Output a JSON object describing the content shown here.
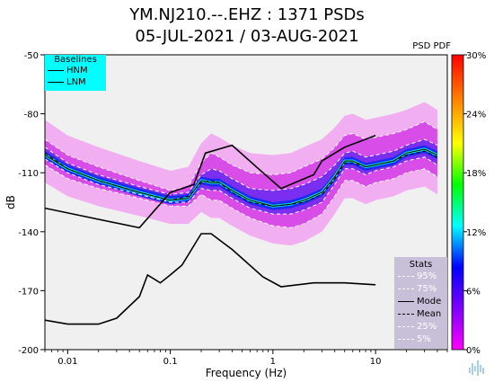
{
  "title_line1": "YM.NJ210.--.EHZ : 1371 PSDs",
  "title_line2": "05-JUL-2021 / 03-AUG-2021",
  "psd_label": "PSD PDF",
  "colors": {
    "plot_bg": "#f0f0f0",
    "baseline_legend_bg": "#00ffff",
    "stats_legend_bg": "#c8c0d8"
  },
  "legend_baselines": {
    "title": "Baselines",
    "items": [
      "HNM",
      "LNM"
    ]
  },
  "legend_stats": {
    "title": "Stats",
    "items": [
      "95%",
      "75%",
      "Mode",
      "Mean",
      "25%",
      "5%"
    ]
  },
  "chart_data": {
    "type": "heatmap",
    "x_scale": "log",
    "xlim": [
      0.006,
      50
    ],
    "ylim": [
      -200,
      -50
    ],
    "xlabel": "Frequency (Hz)",
    "ylabel": "dB",
    "x_ticks": [
      0.01,
      0.1,
      1,
      10
    ],
    "x_tick_labels": [
      "0.01",
      "0.1",
      "1",
      "10"
    ],
    "y_ticks": [
      -50,
      -80,
      -110,
      -140,
      -170,
      -200
    ],
    "y_tick_labels": [
      "-50",
      "-80",
      "-110",
      "-140",
      "-170",
      "-200"
    ],
    "colorbar": {
      "ticks": [
        0,
        6,
        12,
        18,
        24,
        30
      ],
      "tick_labels": [
        "0%",
        "6%",
        "12%",
        "18%",
        "24%",
        "30%"
      ],
      "stops": [
        "#ff00ff",
        "#8000ff",
        "#0000ff",
        "#00ffff",
        "#00ff00",
        "#ffff00",
        "#ff8000",
        "#ff0000"
      ]
    },
    "baselines": {
      "HNM": {
        "x": [
          0.006,
          0.05,
          0.1,
          0.17,
          0.22,
          0.4,
          0.8,
          1.2,
          2.5,
          3,
          5,
          10
        ],
        "y": [
          -128,
          -138,
          -120,
          -116,
          -100,
          -96,
          -110,
          -118,
          -111,
          -104,
          -97,
          -91
        ]
      },
      "LNM": {
        "x": [
          0.006,
          0.01,
          0.02,
          0.03,
          0.05,
          0.06,
          0.08,
          0.1,
          0.13,
          0.2,
          0.25,
          0.4,
          0.8,
          1.2,
          2.5,
          5,
          10
        ],
        "y": [
          -185,
          -187,
          -187,
          -184,
          -173,
          -162,
          -166,
          -162,
          -157,
          -141,
          -141,
          -149,
          -163,
          -168,
          -166,
          -166,
          -167
        ]
      }
    },
    "stats": {
      "x": [
        0.006,
        0.01,
        0.02,
        0.05,
        0.1,
        0.15,
        0.2,
        0.25,
        0.3,
        0.4,
        0.6,
        1,
        1.5,
        2,
        3,
        4,
        5,
        6,
        8,
        10,
        15,
        20,
        30,
        40
      ],
      "p95": [
        -93,
        -101,
        -107,
        -114,
        -119,
        -117,
        -105,
        -100,
        -102,
        -106,
        -110,
        -111,
        -110,
        -107,
        -103,
        -97,
        -91,
        -90,
        -93,
        -92,
        -90,
        -88,
        -84,
        -88
      ],
      "p75": [
        -97,
        -105,
        -111,
        -117,
        -121,
        -120,
        -111,
        -108,
        -109,
        -113,
        -118,
        -119,
        -118,
        -116,
        -112,
        -106,
        -100,
        -99,
        -102,
        -101,
        -99,
        -96,
        -93,
        -96
      ],
      "mode": [
        -101,
        -108,
        -114,
        -120,
        -124,
        -123,
        -114,
        -115,
        -115,
        -119,
        -124,
        -127,
        -126,
        -124,
        -120,
        -112,
        -104,
        -104,
        -107,
        -106,
        -104,
        -100,
        -98,
        -101
      ],
      "mean": [
        -100,
        -108,
        -114,
        -120,
        -124,
        -122,
        -115,
        -114,
        -115,
        -120,
        -125,
        -127,
        -126,
        -125,
        -121,
        -113,
        -105,
        -105,
        -107,
        -106,
        -104,
        -101,
        -99,
        -102
      ],
      "p25": [
        -103,
        -110,
        -116,
        -121,
        -125,
        -125,
        -118,
        -119,
        -119,
        -123,
        -128,
        -131,
        -131,
        -129,
        -125,
        -116,
        -108,
        -108,
        -111,
        -109,
        -107,
        -104,
        -102,
        -106
      ],
      "p5": [
        -106,
        -113,
        -118,
        -123,
        -127,
        -127,
        -121,
        -124,
        -124,
        -128,
        -133,
        -137,
        -138,
        -136,
        -131,
        -122,
        -114,
        -114,
        -117,
        -115,
        -113,
        -110,
        -108,
        -112
      ]
    }
  }
}
